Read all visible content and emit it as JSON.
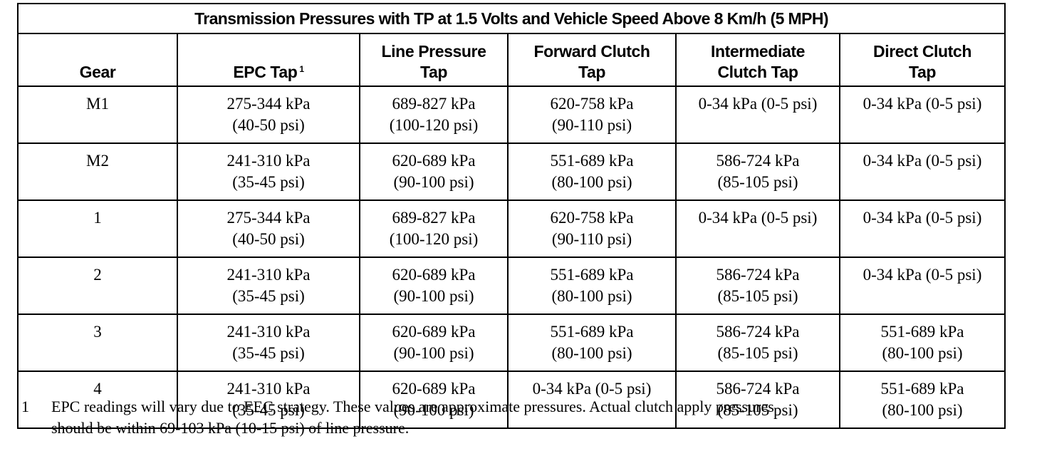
{
  "title": "Transmission Pressures with TP at 1.5 Volts and Vehicle Speed Above 8 Km/h (5 MPH)",
  "headers": [
    {
      "lines": [
        "Gear"
      ],
      "sup": ""
    },
    {
      "lines": [
        "EPC Tap"
      ],
      "sup": "1"
    },
    {
      "lines": [
        "Line Pressure",
        "Tap"
      ],
      "sup": ""
    },
    {
      "lines": [
        "Forward Clutch",
        "Tap"
      ],
      "sup": ""
    },
    {
      "lines": [
        "Intermediate",
        "Clutch Tap"
      ],
      "sup": ""
    },
    {
      "lines": [
        "Direct Clutch",
        "Tap"
      ],
      "sup": ""
    }
  ],
  "rows": [
    [
      [
        "M1"
      ],
      [
        "275-344 kPa",
        "(40-50 psi)"
      ],
      [
        "689-827 kPa",
        "(100-120 psi)"
      ],
      [
        "620-758 kPa",
        "(90-110 psi)"
      ],
      [
        "0-34 kPa (0-5 psi)"
      ],
      [
        "0-34 kPa (0-5 psi)"
      ]
    ],
    [
      [
        "M2"
      ],
      [
        "241-310 kPa",
        "(35-45 psi)"
      ],
      [
        "620-689 kPa",
        "(90-100 psi)"
      ],
      [
        "551-689 kPa",
        "(80-100 psi)"
      ],
      [
        "586-724 kPa",
        "(85-105 psi)"
      ],
      [
        "0-34 kPa (0-5 psi)"
      ]
    ],
    [
      [
        "1"
      ],
      [
        "275-344 kPa",
        "(40-50 psi)"
      ],
      [
        "689-827 kPa",
        "(100-120 psi)"
      ],
      [
        "620-758 kPa",
        "(90-110 psi)"
      ],
      [
        "0-34 kPa (0-5 psi)"
      ],
      [
        "0-34 kPa (0-5 psi)"
      ]
    ],
    [
      [
        "2"
      ],
      [
        "241-310 kPa",
        "(35-45 psi)"
      ],
      [
        "620-689 kPa",
        "(90-100 psi)"
      ],
      [
        "551-689 kPa",
        "(80-100 psi)"
      ],
      [
        "586-724 kPa",
        "(85-105 psi)"
      ],
      [
        "0-34 kPa (0-5 psi)"
      ]
    ],
    [
      [
        "3"
      ],
      [
        "241-310 kPa",
        "(35-45 psi)"
      ],
      [
        "620-689 kPa",
        "(90-100 psi)"
      ],
      [
        "551-689 kPa",
        "(80-100 psi)"
      ],
      [
        "586-724 kPa",
        "(85-105 psi)"
      ],
      [
        "551-689 kPa",
        "(80-100 psi)"
      ]
    ],
    [
      [
        "4"
      ],
      [
        "241-310 kPa",
        "(35-45 psi)"
      ],
      [
        "620-689 kPa",
        "(90-100 psi)"
      ],
      [
        "0-34 kPa (0-5 psi)"
      ],
      [
        "586-724 kPa",
        "(85-105 psi)"
      ],
      [
        "551-689 kPa",
        "(80-100 psi)"
      ]
    ]
  ],
  "footnote": {
    "number": "1",
    "lines": [
      "EPC readings will vary due to EEC strategy. These values are approximate pressures. Actual clutch apply pressures",
      "should be within 69-103 kPa (10-15 psi) of line pressure."
    ]
  }
}
